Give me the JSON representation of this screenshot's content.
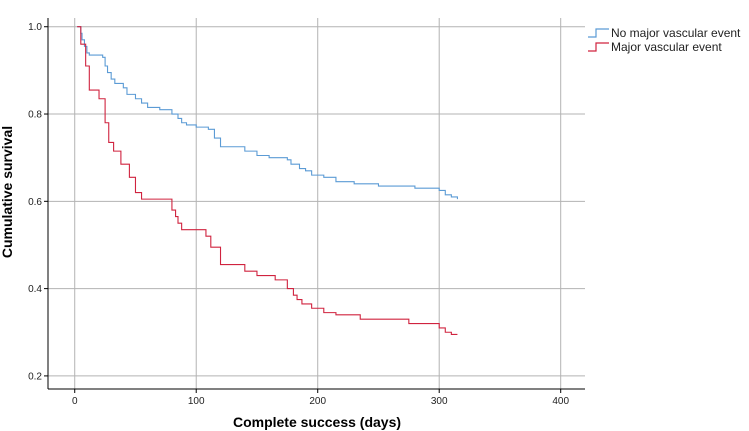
{
  "chart_data": {
    "type": "line",
    "title": "",
    "xlabel": "Complete success (days)",
    "ylabel": "Cumulative survival",
    "xlim": [
      -22,
      420
    ],
    "ylim": [
      0.17,
      1.02
    ],
    "x_ticks": [
      0,
      100,
      200,
      300,
      400
    ],
    "y_ticks": [
      0.2,
      0.4,
      0.6,
      0.8,
      1.0
    ],
    "x_tick_labels": [
      "0",
      "100",
      "200",
      "300",
      "400"
    ],
    "y_tick_labels": [
      "0.2",
      "0.4",
      "0.6",
      "0.8",
      "1.0"
    ],
    "grid": true,
    "legend_position": "top-right",
    "series": [
      {
        "name": "No major vascular event",
        "color": "#5b9bd5",
        "step": true,
        "x": [
          2,
          5,
          6,
          8,
          10,
          12,
          23,
          25,
          27,
          30,
          33,
          40,
          43,
          50,
          55,
          60,
          70,
          80,
          85,
          88,
          92,
          100,
          110,
          115,
          120,
          140,
          150,
          160,
          175,
          178,
          185,
          190,
          195,
          205,
          215,
          230,
          250,
          275,
          280,
          300,
          305,
          310,
          315
        ],
        "y": [
          1.0,
          0.985,
          0.97,
          0.955,
          0.94,
          0.935,
          0.93,
          0.91,
          0.895,
          0.88,
          0.87,
          0.86,
          0.845,
          0.835,
          0.825,
          0.815,
          0.81,
          0.8,
          0.79,
          0.78,
          0.775,
          0.77,
          0.765,
          0.745,
          0.725,
          0.715,
          0.705,
          0.7,
          0.695,
          0.685,
          0.675,
          0.67,
          0.66,
          0.655,
          0.645,
          0.64,
          0.635,
          0.635,
          0.63,
          0.625,
          0.615,
          0.61,
          0.605
        ]
      },
      {
        "name": "Major vascular event",
        "color": "#d0233f",
        "step": true,
        "x": [
          2,
          5,
          9,
          12,
          20,
          25,
          28,
          32,
          38,
          45,
          50,
          55,
          70,
          80,
          83,
          85,
          88,
          92,
          108,
          112,
          120,
          140,
          150,
          165,
          175,
          180,
          183,
          187,
          195,
          205,
          215,
          235,
          275,
          297,
          300,
          305,
          310,
          315
        ],
        "y": [
          1.0,
          0.96,
          0.91,
          0.855,
          0.835,
          0.78,
          0.735,
          0.715,
          0.685,
          0.655,
          0.62,
          0.605,
          0.605,
          0.58,
          0.565,
          0.55,
          0.535,
          0.535,
          0.52,
          0.495,
          0.455,
          0.44,
          0.43,
          0.42,
          0.4,
          0.385,
          0.375,
          0.365,
          0.355,
          0.345,
          0.34,
          0.33,
          0.32,
          0.32,
          0.31,
          0.3,
          0.295,
          0.295
        ]
      }
    ]
  }
}
